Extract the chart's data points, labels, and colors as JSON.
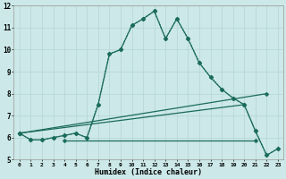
{
  "title": "",
  "xlabel": "Humidex (Indice chaleur)",
  "bg_color": "#cce8e8",
  "grid_color": "#b8d8d8",
  "line_color": "#1a6b5a",
  "xlim": [
    -0.5,
    23.5
  ],
  "ylim": [
    5,
    12
  ],
  "xtick_vals": [
    0,
    1,
    2,
    3,
    4,
    5,
    6,
    7,
    8,
    9,
    10,
    11,
    12,
    13,
    14,
    15,
    16,
    17,
    18,
    19,
    20,
    21,
    22,
    23
  ],
  "ytick_vals": [
    5,
    6,
    7,
    8,
    9,
    10,
    11,
    12
  ],
  "series_main": {
    "x": [
      0,
      1,
      2,
      3,
      4,
      5,
      6,
      7,
      8,
      9,
      10,
      11,
      12,
      13,
      14,
      15,
      16,
      17,
      18,
      19,
      20,
      21,
      22,
      23
    ],
    "y": [
      6.2,
      5.9,
      5.9,
      6.0,
      6.1,
      6.2,
      6.0,
      7.5,
      9.8,
      10.0,
      11.1,
      11.4,
      11.75,
      10.5,
      11.4,
      10.5,
      9.4,
      8.75,
      8.2,
      7.8,
      7.5,
      6.3,
      5.2,
      5.5
    ]
  },
  "series_linear1": {
    "x": [
      0,
      20
    ],
    "y": [
      6.2,
      7.5
    ]
  },
  "series_linear2": {
    "x": [
      0,
      22
    ],
    "y": [
      6.2,
      8.0
    ]
  },
  "series_flat": {
    "x": [
      4,
      21
    ],
    "y": [
      5.85,
      5.85
    ]
  }
}
